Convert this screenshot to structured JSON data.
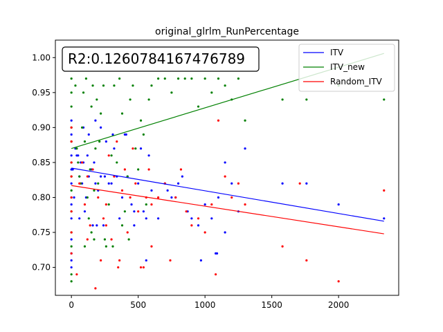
{
  "chart_data": {
    "type": "scatter",
    "title": "original_glrlm_RunPercentage",
    "xlabel": "",
    "ylabel": "",
    "xlim": [
      -120,
      2450
    ],
    "ylim": [
      0.66,
      1.025
    ],
    "xticks": [
      0,
      500,
      1000,
      1500,
      2000
    ],
    "yticks": [
      0.7,
      0.75,
      0.8,
      0.85,
      0.9,
      0.95,
      1.0
    ],
    "grid": false,
    "legend_position": "top-right",
    "annotation": "R2:0.1260784167476789",
    "series": [
      {
        "name": "ITV",
        "color": "#0000ff",
        "line": {
          "x": [
            0,
            2340
          ],
          "y": [
            0.842,
            0.766
          ]
        },
        "points": [
          [
            0,
            0.7
          ],
          [
            0,
            0.71
          ],
          [
            0,
            0.72
          ],
          [
            0,
            0.74
          ],
          [
            0,
            0.77
          ],
          [
            0,
            0.79
          ],
          [
            0,
            0.8
          ],
          [
            0,
            0.82
          ],
          [
            0,
            0.84
          ],
          [
            0,
            0.86
          ],
          [
            0,
            0.89
          ],
          [
            0,
            0.91
          ],
          [
            10,
            0.84
          ],
          [
            20,
            0.8
          ],
          [
            30,
            0.87
          ],
          [
            40,
            0.86
          ],
          [
            50,
            0.86
          ],
          [
            60,
            0.83
          ],
          [
            70,
            0.85
          ],
          [
            80,
            0.82
          ],
          [
            90,
            0.85
          ],
          [
            100,
            0.78
          ],
          [
            110,
            0.8
          ],
          [
            120,
            0.86
          ],
          [
            130,
            0.83
          ],
          [
            150,
            0.84
          ],
          [
            160,
            0.76
          ],
          [
            170,
            0.85
          ],
          [
            180,
            0.82
          ],
          [
            190,
            0.76
          ],
          [
            200,
            0.81
          ],
          [
            220,
            0.83
          ],
          [
            250,
            0.83
          ],
          [
            260,
            0.88
          ],
          [
            280,
            0.82
          ],
          [
            300,
            0.82
          ],
          [
            320,
            0.87
          ],
          [
            340,
            0.83
          ],
          [
            360,
            0.77
          ],
          [
            380,
            0.8
          ],
          [
            400,
            0.89
          ],
          [
            420,
            0.83
          ],
          [
            450,
            0.79
          ],
          [
            470,
            0.78
          ],
          [
            500,
            0.82
          ],
          [
            520,
            0.87
          ],
          [
            540,
            0.78
          ],
          [
            560,
            0.77
          ],
          [
            580,
            0.86
          ],
          [
            600,
            0.81
          ],
          [
            650,
            0.77
          ],
          [
            700,
            0.82
          ],
          [
            720,
            0.81
          ],
          [
            750,
            0.8
          ],
          [
            780,
            0.8
          ],
          [
            800,
            0.82
          ],
          [
            830,
            0.83
          ],
          [
            870,
            0.78
          ],
          [
            900,
            0.77
          ],
          [
            950,
            0.76
          ],
          [
            1000,
            0.79
          ],
          [
            1050,
            0.77
          ],
          [
            1080,
            0.72
          ],
          [
            1100,
            0.8
          ],
          [
            1150,
            0.85
          ],
          [
            1200,
            0.82
          ],
          [
            1250,
            0.78
          ],
          [
            1300,
            0.87
          ],
          [
            1580,
            0.82
          ],
          [
            1760,
            0.82
          ],
          [
            2000,
            0.79
          ],
          [
            2340,
            0.77
          ],
          [
            90,
            0.9
          ],
          [
            130,
            0.89
          ],
          [
            220,
            0.9
          ],
          [
            310,
            0.89
          ],
          [
            410,
            0.89
          ],
          [
            180,
            0.91
          ],
          [
            60,
            0.77
          ],
          [
            240,
            0.76
          ],
          [
            470,
            0.76
          ],
          [
            560,
            0.71
          ],
          [
            970,
            0.71
          ],
          [
            1090,
            0.72
          ],
          [
            1150,
            0.75
          ]
        ]
      },
      {
        "name": "ITV_new",
        "color": "#008000",
        "line": {
          "x": [
            0,
            2340
          ],
          "y": [
            0.87,
            1.006
          ]
        },
        "points": [
          [
            0,
            0.68
          ],
          [
            0,
            0.69
          ],
          [
            0,
            0.73
          ],
          [
            0,
            0.75
          ],
          [
            0,
            0.78
          ],
          [
            0,
            0.81
          ],
          [
            0,
            0.83
          ],
          [
            0,
            0.85
          ],
          [
            0,
            0.88
          ],
          [
            0,
            0.9
          ],
          [
            0,
            0.93
          ],
          [
            0,
            0.95
          ],
          [
            0,
            0.97
          ],
          [
            30,
            0.96
          ],
          [
            40,
            0.87
          ],
          [
            50,
            0.85
          ],
          [
            60,
            0.83
          ],
          [
            70,
            0.82
          ],
          [
            80,
            0.9
          ],
          [
            90,
            0.95
          ],
          [
            100,
            0.88
          ],
          [
            110,
            0.97
          ],
          [
            120,
            0.8
          ],
          [
            130,
            0.77
          ],
          [
            140,
            0.84
          ],
          [
            150,
            0.93
          ],
          [
            160,
            0.96
          ],
          [
            170,
            0.81
          ],
          [
            180,
            0.87
          ],
          [
            190,
            0.94
          ],
          [
            200,
            0.82
          ],
          [
            210,
            0.88
          ],
          [
            220,
            0.92
          ],
          [
            240,
            0.96
          ],
          [
            260,
            0.73
          ],
          [
            280,
            0.79
          ],
          [
            300,
            0.86
          ],
          [
            320,
            0.96
          ],
          [
            340,
            0.85
          ],
          [
            360,
            0.97
          ],
          [
            380,
            0.92
          ],
          [
            400,
            0.78
          ],
          [
            420,
            0.83
          ],
          [
            440,
            0.94
          ],
          [
            460,
            0.96
          ],
          [
            480,
            0.87
          ],
          [
            500,
            0.84
          ],
          [
            520,
            0.91
          ],
          [
            540,
            0.89
          ],
          [
            560,
            0.79
          ],
          [
            580,
            0.94
          ],
          [
            600,
            0.96
          ],
          [
            650,
            0.97
          ],
          [
            700,
            0.97
          ],
          [
            750,
            0.95
          ],
          [
            800,
            0.97
          ],
          [
            850,
            0.97
          ],
          [
            900,
            0.97
          ],
          [
            950,
            0.93
          ],
          [
            1000,
            0.97
          ],
          [
            1050,
            0.95
          ],
          [
            1100,
            0.97
          ],
          [
            1150,
            0.96
          ],
          [
            1200,
            0.94
          ],
          [
            1250,
            0.97
          ],
          [
            1300,
            0.91
          ],
          [
            1580,
            0.94
          ],
          [
            1760,
            0.94
          ],
          [
            2000,
            0.96
          ],
          [
            2340,
            0.94
          ],
          [
            100,
            0.73
          ],
          [
            250,
            0.74
          ],
          [
            380,
            0.76
          ],
          [
            430,
            0.74
          ],
          [
            150,
            0.75
          ],
          [
            310,
            0.73
          ],
          [
            170,
            0.74
          ]
        ]
      },
      {
        "name": "Random_ITV",
        "color": "#ff0000",
        "line": {
          "x": [
            0,
            2340
          ],
          "y": [
            0.817,
            0.748
          ]
        },
        "points": [
          [
            0,
            0.72
          ],
          [
            0,
            0.75
          ],
          [
            0,
            0.78
          ],
          [
            0,
            0.8
          ],
          [
            0,
            0.83
          ],
          [
            0,
            0.85
          ],
          [
            0,
            0.88
          ],
          [
            0,
            0.9
          ],
          [
            40,
            0.69
          ],
          [
            60,
            0.82
          ],
          [
            80,
            0.85
          ],
          [
            100,
            0.79
          ],
          [
            120,
            0.83
          ],
          [
            140,
            0.76
          ],
          [
            160,
            0.84
          ],
          [
            180,
            0.67
          ],
          [
            200,
            0.8
          ],
          [
            220,
            0.71
          ],
          [
            240,
            0.77
          ],
          [
            260,
            0.79
          ],
          [
            280,
            0.86
          ],
          [
            300,
            0.74
          ],
          [
            320,
            0.83
          ],
          [
            340,
            0.88
          ],
          [
            360,
            0.71
          ],
          [
            380,
            0.81
          ],
          [
            400,
            0.84
          ],
          [
            420,
            0.75
          ],
          [
            440,
            0.8
          ],
          [
            460,
            0.87
          ],
          [
            480,
            0.82
          ],
          [
            500,
            0.78
          ],
          [
            520,
            0.7
          ],
          [
            540,
            0.7
          ],
          [
            560,
            0.8
          ],
          [
            580,
            0.84
          ],
          [
            600,
            0.79
          ],
          [
            650,
            0.8
          ],
          [
            700,
            0.82
          ],
          [
            740,
            0.71
          ],
          [
            780,
            0.8
          ],
          [
            820,
            0.84
          ],
          [
            860,
            0.78
          ],
          [
            900,
            0.76
          ],
          [
            950,
            0.77
          ],
          [
            1000,
            0.75
          ],
          [
            1050,
            0.79
          ],
          [
            1080,
            0.69
          ],
          [
            1100,
            0.91
          ],
          [
            1150,
            0.83
          ],
          [
            1200,
            0.8
          ],
          [
            1250,
            0.82
          ],
          [
            1300,
            0.79
          ],
          [
            1580,
            0.73
          ],
          [
            1710,
            0.82
          ],
          [
            1760,
            0.71
          ],
          [
            2000,
            0.68
          ],
          [
            2340,
            0.81
          ],
          [
            120,
            0.74
          ],
          [
            260,
            0.76
          ],
          [
            350,
            0.7
          ],
          [
            600,
            0.73
          ]
        ]
      }
    ]
  }
}
